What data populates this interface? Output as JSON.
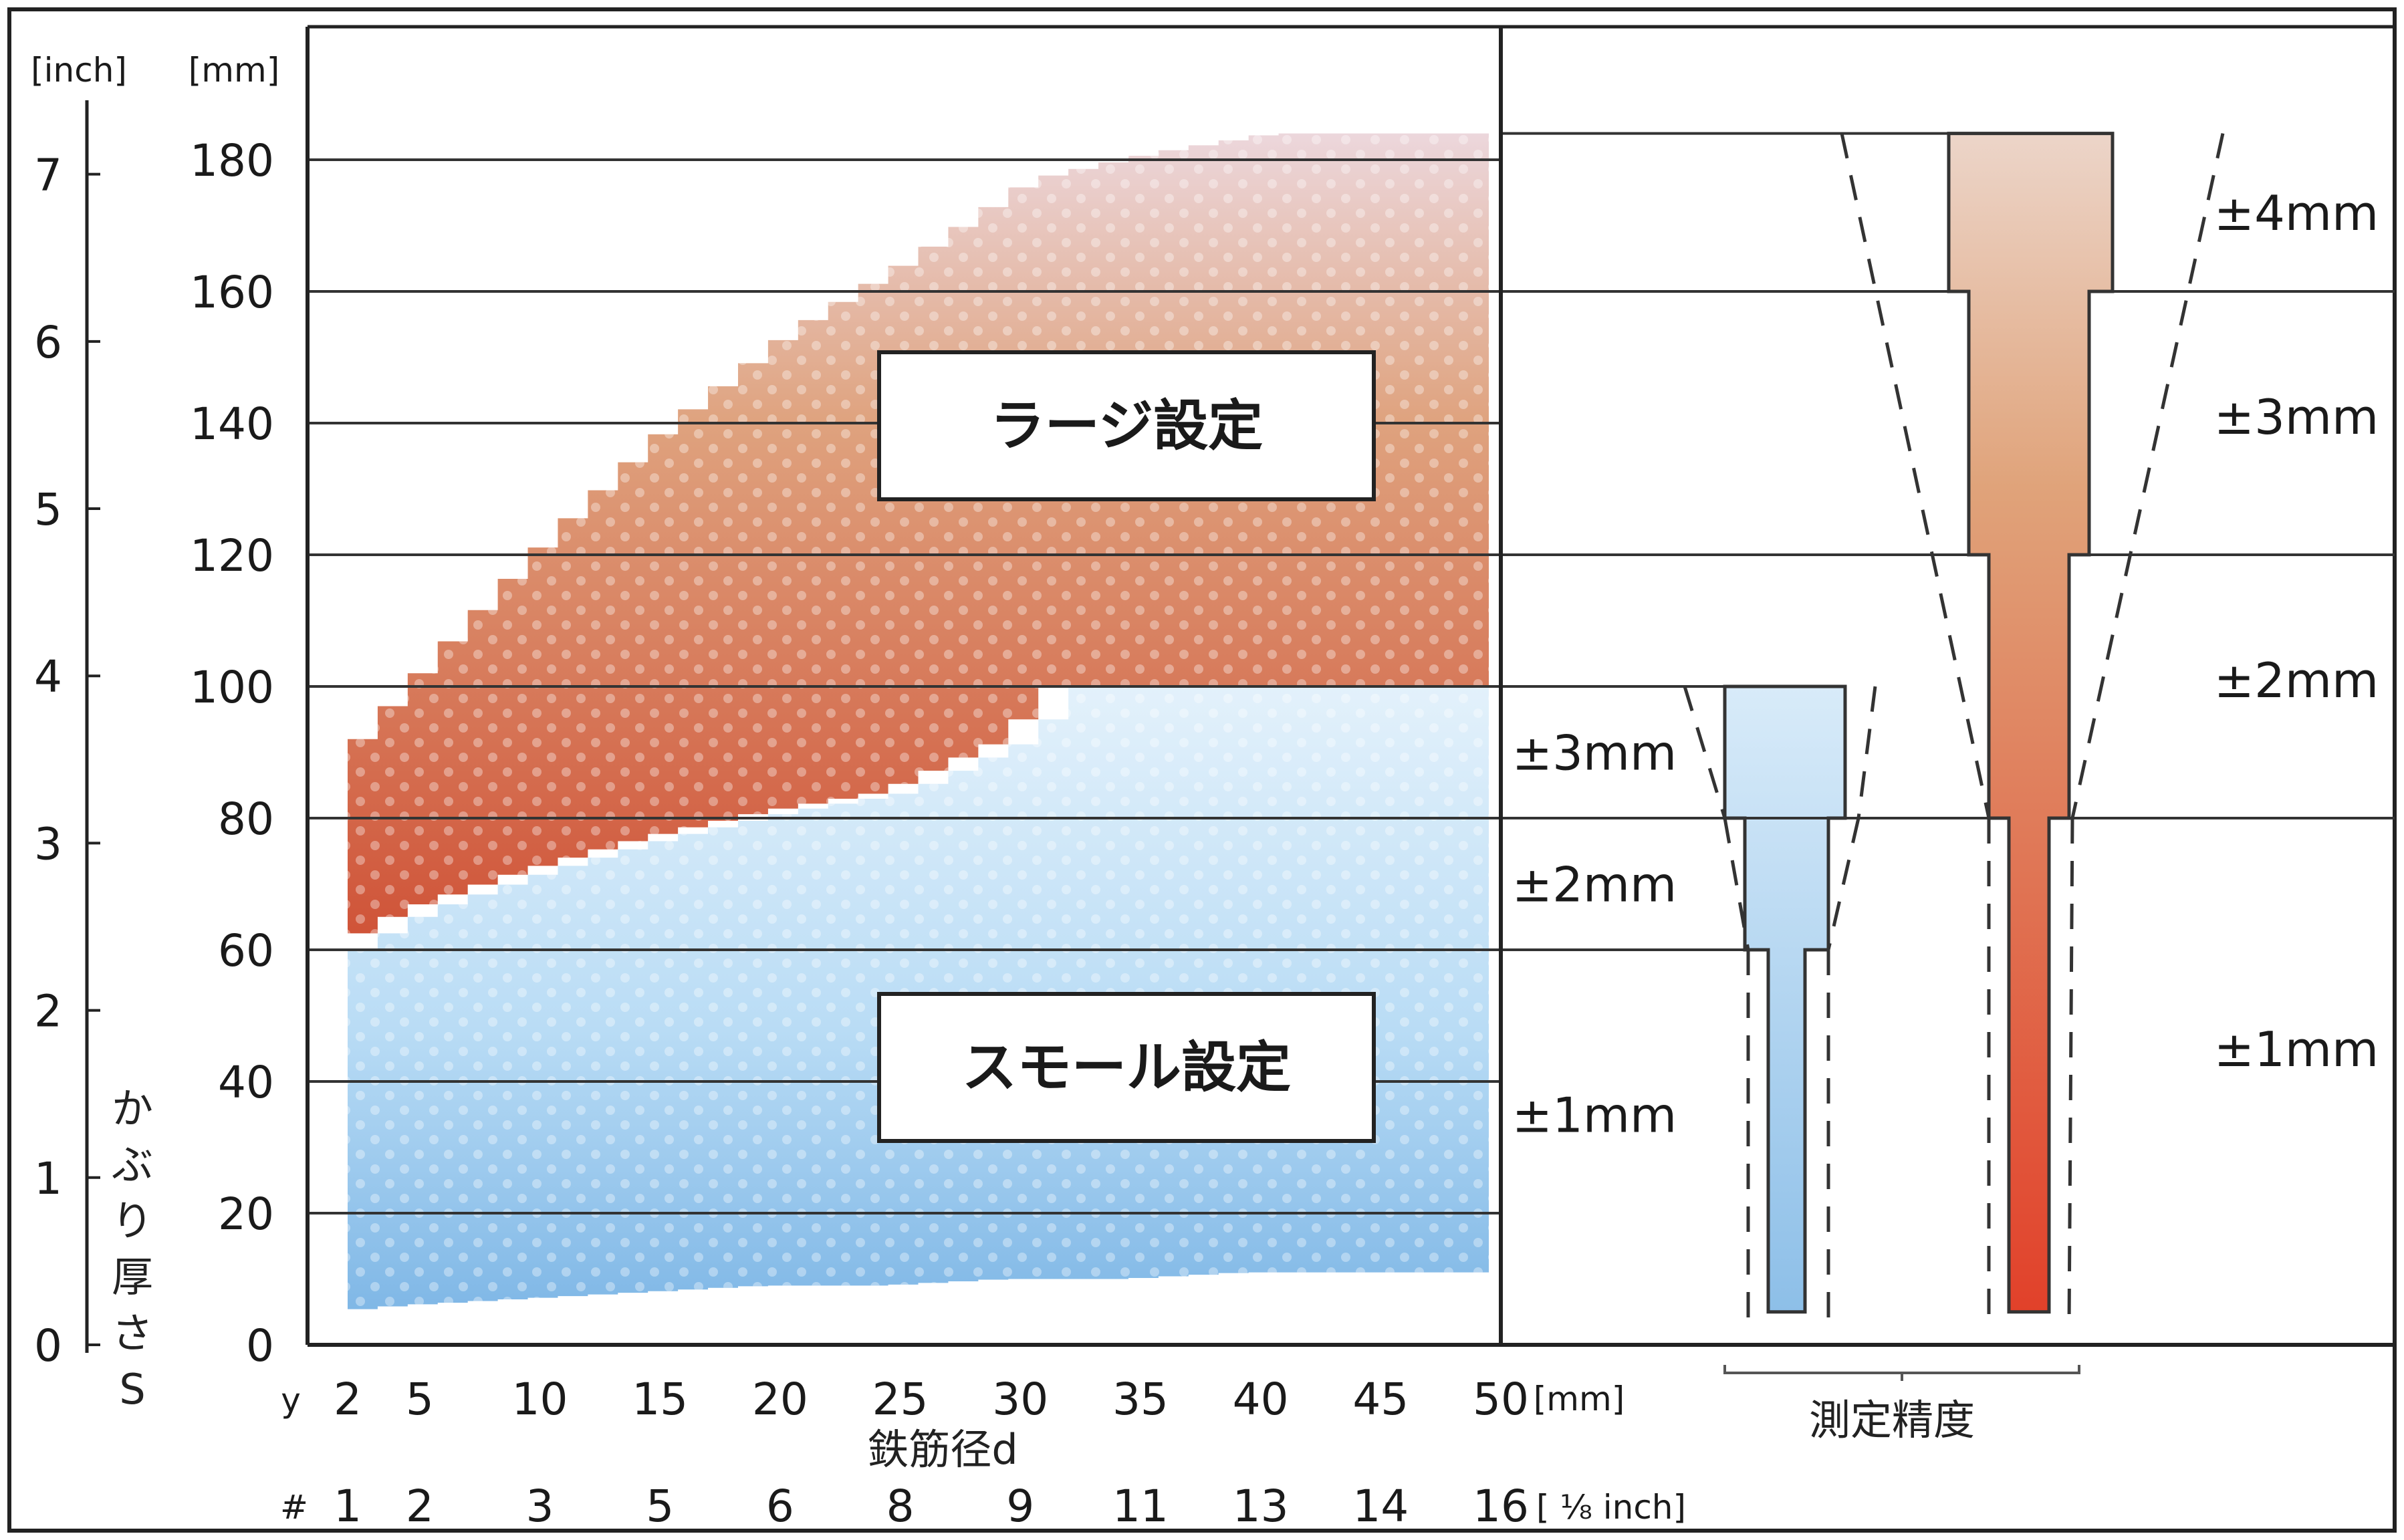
{
  "chart_data": {
    "type": "area",
    "y_axis": {
      "unit_mm": "[mm]",
      "unit_inch": "[inch]",
      "ticks_mm": [
        0,
        20,
        40,
        60,
        80,
        100,
        120,
        140,
        160,
        180
      ],
      "ticks_inch": [
        0,
        1,
        2,
        3,
        4,
        5,
        6,
        7
      ],
      "label_chars": [
        "か",
        "ぶ",
        "り",
        "厚",
        "さ",
        "S"
      ],
      "ylim": [
        0,
        200
      ]
    },
    "x_axis": {
      "prefix_mm": "y",
      "ticks_mm": [
        2,
        5,
        10,
        15,
        20,
        25,
        30,
        35,
        40,
        45,
        50
      ],
      "unit_mm": "[mm]",
      "prefix_bar": "#",
      "ticks_bar": [
        1,
        2,
        3,
        5,
        6,
        8,
        9,
        11,
        13,
        14,
        16
      ],
      "unit_bar": "[ ⅛ inch]",
      "label": "鉄筋径d",
      "xlim": [
        0,
        50
      ]
    },
    "series": [
      {
        "name": "ラージ設定",
        "color": "#cf5a40",
        "upper": [
          [
            2,
            92
          ],
          [
            5,
            104
          ],
          [
            10,
            123
          ],
          [
            15,
            140
          ],
          [
            20,
            154
          ],
          [
            25,
            165
          ],
          [
            30,
            177
          ],
          [
            35,
            181
          ],
          [
            40,
            184
          ],
          [
            45,
            184
          ],
          [
            50,
            184
          ]
        ],
        "lower": [
          [
            2,
            60
          ],
          [
            5,
            66
          ],
          [
            10,
            72
          ],
          [
            15,
            77
          ],
          [
            20,
            81
          ],
          [
            25,
            84
          ],
          [
            30,
            92
          ],
          [
            32,
            100
          ],
          [
            50,
            100
          ]
        ]
      },
      {
        "name": "スモール設定",
        "color": "#9fcbed",
        "upper": [
          [
            2,
            60
          ],
          [
            5,
            66
          ],
          [
            10,
            72
          ],
          [
            15,
            77
          ],
          [
            20,
            81
          ],
          [
            25,
            84
          ],
          [
            30,
            92
          ],
          [
            32,
            100
          ],
          [
            50,
            100
          ]
        ],
        "lower": [
          [
            2,
            5
          ],
          [
            5,
            6
          ],
          [
            10,
            7
          ],
          [
            15,
            8
          ],
          [
            20,
            9
          ],
          [
            25,
            9
          ],
          [
            30,
            10
          ],
          [
            35,
            10
          ],
          [
            40,
            11
          ],
          [
            45,
            11
          ],
          [
            50,
            11
          ]
        ]
      }
    ],
    "accuracy": {
      "label": "測定精度",
      "small_labels": [
        {
          "text": "±3mm",
          "y": 90
        },
        {
          "text": "±2mm",
          "y": 70
        },
        {
          "text": "±1mm",
          "y": 35
        }
      ],
      "large_labels": [
        {
          "text": "±4mm",
          "y": 172
        },
        {
          "text": "±3mm",
          "y": 141
        },
        {
          "text": "±2mm",
          "y": 101
        },
        {
          "text": "±1mm",
          "y": 45
        }
      ],
      "small_bands_mm": [
        {
          "range": [
            80,
            100
          ],
          "value": 3
        },
        {
          "range": [
            60,
            80
          ],
          "value": 2
        },
        {
          "range": [
            5,
            60
          ],
          "value": 1
        }
      ],
      "large_bands_mm": [
        {
          "range": [
            160,
            184
          ],
          "value": 4
        },
        {
          "range": [
            120,
            160
          ],
          "value": 3
        },
        {
          "range": [
            80,
            120
          ],
          "value": 2
        },
        {
          "range": [
            5,
            80
          ],
          "value": 1
        }
      ]
    }
  }
}
